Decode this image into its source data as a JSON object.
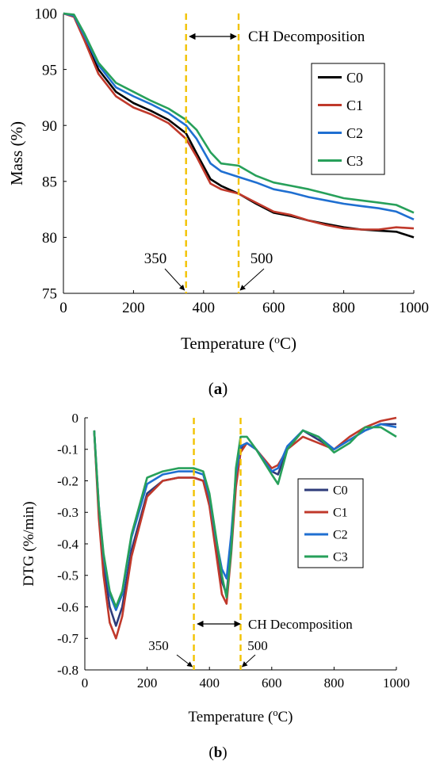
{
  "chart_data": [
    {
      "type": "line",
      "panel_label": "a",
      "xlabel": "Temperature (",
      "xlabel_sup": "o",
      "xlabel_end": "C)",
      "ylabel": "Mass (%)",
      "xlim": [
        0,
        1000
      ],
      "ylim": [
        75,
        100
      ],
      "xticks": [
        0,
        200,
        400,
        600,
        800,
        1000
      ],
      "yticks": [
        75,
        80,
        85,
        90,
        95,
        100
      ],
      "legend_position": "right",
      "annotation": "CH Decomposition",
      "vlines": [
        350,
        500
      ],
      "vline_labels": [
        "350",
        "500"
      ],
      "series": [
        {
          "name": "C0",
          "color": "#000000",
          "x": [
            0,
            30,
            60,
            100,
            150,
            200,
            250,
            300,
            350,
            380,
            420,
            450,
            500,
            550,
            600,
            650,
            700,
            750,
            800,
            850,
            900,
            950,
            1000
          ],
          "y": [
            100,
            99.8,
            97.8,
            95,
            93,
            92,
            91.3,
            90.5,
            89.3,
            87.5,
            85.2,
            84.6,
            83.9,
            83,
            82.2,
            81.9,
            81.5,
            81.2,
            80.9,
            80.7,
            80.6,
            80.5,
            80
          ]
        },
        {
          "name": "C1",
          "color": "#c0392b",
          "x": [
            0,
            30,
            60,
            100,
            150,
            200,
            250,
            300,
            350,
            380,
            420,
            450,
            500,
            550,
            600,
            650,
            700,
            750,
            800,
            850,
            900,
            950,
            1000
          ],
          "y": [
            100,
            99.7,
            97.6,
            94.6,
            92.6,
            91.6,
            91,
            90.2,
            88.8,
            87.2,
            84.8,
            84.3,
            83.9,
            83.1,
            82.3,
            82,
            81.5,
            81.1,
            80.8,
            80.7,
            80.7,
            80.9,
            80.8
          ]
        },
        {
          "name": "C2",
          "color": "#1f6fd1",
          "x": [
            0,
            30,
            60,
            100,
            150,
            200,
            250,
            300,
            350,
            380,
            420,
            450,
            500,
            550,
            600,
            650,
            700,
            750,
            800,
            850,
            900,
            950,
            1000
          ],
          "y": [
            100,
            99.8,
            98,
            95.4,
            93.4,
            92.6,
            91.9,
            91.1,
            90,
            88.8,
            86.6,
            85.9,
            85.4,
            84.9,
            84.3,
            84,
            83.6,
            83.3,
            83,
            82.8,
            82.6,
            82.3,
            81.6
          ]
        },
        {
          "name": "C3",
          "color": "#27a05a",
          "x": [
            0,
            30,
            60,
            100,
            150,
            200,
            250,
            300,
            350,
            380,
            420,
            450,
            500,
            550,
            600,
            650,
            700,
            750,
            800,
            850,
            900,
            950,
            1000
          ],
          "y": [
            100,
            99.9,
            98.2,
            95.6,
            93.8,
            93,
            92.2,
            91.5,
            90.5,
            89.6,
            87.6,
            86.6,
            86.4,
            85.5,
            84.9,
            84.6,
            84.3,
            83.9,
            83.5,
            83.3,
            83.1,
            82.9,
            82.2
          ]
        }
      ]
    },
    {
      "type": "line",
      "panel_label": "b",
      "xlabel": "Temperature (",
      "xlabel_sup": "o",
      "xlabel_end": "C)",
      "ylabel": "DTG (%/min)",
      "xlim": [
        0,
        1000
      ],
      "ylim": [
        -0.8,
        0
      ],
      "xticks": [
        0,
        200,
        400,
        600,
        800,
        1000
      ],
      "yticks": [
        "0",
        "-0.1",
        "-0.2",
        "-0.3",
        "-0.4",
        "-0.5",
        "-0.6",
        "-0.7",
        "-0.8"
      ],
      "legend_position": "right",
      "annotation": "CH Decomposition",
      "vlines": [
        350,
        500
      ],
      "vline_labels": [
        "350",
        "500"
      ],
      "series": [
        {
          "name": "C0",
          "color": "#2e3b7a",
          "x": [
            30,
            45,
            60,
            80,
            100,
            120,
            150,
            200,
            250,
            300,
            350,
            380,
            400,
            420,
            440,
            455,
            470,
            485,
            500,
            520,
            550,
            600,
            620,
            650,
            700,
            750,
            800,
            850,
            900,
            950,
            1000
          ],
          "y": [
            -0.04,
            -0.3,
            -0.46,
            -0.6,
            -0.66,
            -0.6,
            -0.42,
            -0.24,
            -0.2,
            -0.19,
            -0.19,
            -0.2,
            -0.27,
            -0.4,
            -0.52,
            -0.56,
            -0.4,
            -0.2,
            -0.1,
            -0.08,
            -0.1,
            -0.17,
            -0.18,
            -0.1,
            -0.04,
            -0.07,
            -0.1,
            -0.07,
            -0.04,
            -0.02,
            -0.02
          ]
        },
        {
          "name": "C1",
          "color": "#c0392b",
          "x": [
            30,
            45,
            60,
            80,
            100,
            120,
            150,
            200,
            250,
            300,
            350,
            380,
            400,
            420,
            440,
            455,
            470,
            485,
            500,
            520,
            550,
            600,
            620,
            650,
            700,
            750,
            800,
            850,
            900,
            950,
            1000
          ],
          "y": [
            -0.04,
            -0.32,
            -0.5,
            -0.65,
            -0.7,
            -0.63,
            -0.44,
            -0.25,
            -0.2,
            -0.19,
            -0.19,
            -0.2,
            -0.28,
            -0.42,
            -0.56,
            -0.59,
            -0.43,
            -0.22,
            -0.11,
            -0.08,
            -0.1,
            -0.16,
            -0.15,
            -0.1,
            -0.06,
            -0.08,
            -0.1,
            -0.06,
            -0.03,
            -0.01,
            0
          ]
        },
        {
          "name": "C2",
          "color": "#1f6fd1",
          "x": [
            30,
            45,
            60,
            80,
            100,
            120,
            150,
            200,
            250,
            300,
            350,
            380,
            400,
            420,
            440,
            455,
            470,
            485,
            500,
            520,
            550,
            600,
            620,
            650,
            700,
            750,
            800,
            850,
            900,
            950,
            1000
          ],
          "y": [
            -0.04,
            -0.28,
            -0.44,
            -0.56,
            -0.61,
            -0.56,
            -0.38,
            -0.21,
            -0.18,
            -0.17,
            -0.17,
            -0.18,
            -0.25,
            -0.38,
            -0.48,
            -0.51,
            -0.37,
            -0.18,
            -0.09,
            -0.08,
            -0.1,
            -0.17,
            -0.16,
            -0.09,
            -0.04,
            -0.06,
            -0.1,
            -0.07,
            -0.04,
            -0.02,
            -0.03
          ]
        },
        {
          "name": "C3",
          "color": "#27a05a",
          "x": [
            30,
            45,
            60,
            80,
            100,
            120,
            150,
            200,
            250,
            300,
            350,
            380,
            400,
            420,
            440,
            455,
            470,
            485,
            500,
            520,
            550,
            600,
            620,
            650,
            700,
            750,
            800,
            850,
            900,
            950,
            1000
          ],
          "y": [
            -0.04,
            -0.28,
            -0.43,
            -0.55,
            -0.6,
            -0.55,
            -0.37,
            -0.19,
            -0.17,
            -0.16,
            -0.16,
            -0.17,
            -0.24,
            -0.37,
            -0.5,
            -0.57,
            -0.42,
            -0.16,
            -0.06,
            -0.06,
            -0.1,
            -0.18,
            -0.21,
            -0.1,
            -0.04,
            -0.06,
            -0.11,
            -0.08,
            -0.03,
            -0.03,
            -0.06
          ]
        }
      ]
    }
  ]
}
